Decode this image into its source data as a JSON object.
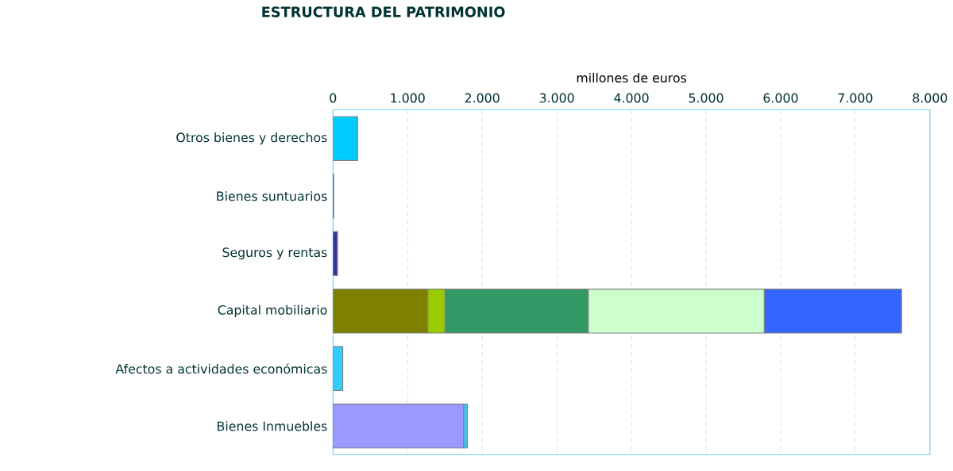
{
  "chart_data": {
    "type": "bar",
    "orientation": "horizontal",
    "stacked": true,
    "title": "ESTRUCTURA DEL PATRIMONIO",
    "xlabel": "millones de euros",
    "categories": [
      "Otros bienes y derechos",
      "Bienes suntuarios",
      "Seguros y rentas",
      "Capital mobiliario",
      "Afectos a actividades económicas",
      "Bienes Inmuebles"
    ],
    "series": [
      {
        "color": "#9999ff",
        "values": [
          null,
          null,
          null,
          null,
          null,
          1750
        ]
      },
      {
        "color": "#808000",
        "values": [
          null,
          null,
          null,
          1270,
          null,
          null
        ]
      },
      {
        "color": "#99cc00",
        "values": [
          null,
          null,
          null,
          230,
          null,
          null
        ]
      },
      {
        "color": "#339966",
        "values": [
          null,
          null,
          null,
          1920,
          null,
          null
        ]
      },
      {
        "color": "#ccffcc",
        "values": [
          null,
          null,
          null,
          2360,
          null,
          null
        ]
      },
      {
        "color": "#333399",
        "values": [
          null,
          null,
          60,
          null,
          null,
          null
        ]
      },
      {
        "color": "#33ccff",
        "values": [
          null,
          null,
          null,
          null,
          130,
          50
        ]
      },
      {
        "color": "#00ccff",
        "values": [
          330,
          null,
          null,
          null,
          null,
          null
        ]
      },
      {
        "color": "#3366ff",
        "values": [
          null,
          10,
          null,
          1840,
          null,
          null
        ]
      }
    ],
    "xlim": [
      0,
      8000
    ],
    "xticks": [
      0,
      {
        "value": 1000,
        "label": "1.000"
      },
      {
        "value": 2000,
        "label": "2.000"
      },
      {
        "value": 3000,
        "label": "3.000"
      },
      {
        "value": 4000,
        "label": "4.000"
      },
      {
        "value": 5000,
        "label": "5.000"
      },
      {
        "value": 6000,
        "label": "6.000"
      },
      {
        "value": 7000,
        "label": "7.000"
      },
      {
        "value": 8000,
        "label": "8.000"
      }
    ],
    "grid": "x"
  }
}
